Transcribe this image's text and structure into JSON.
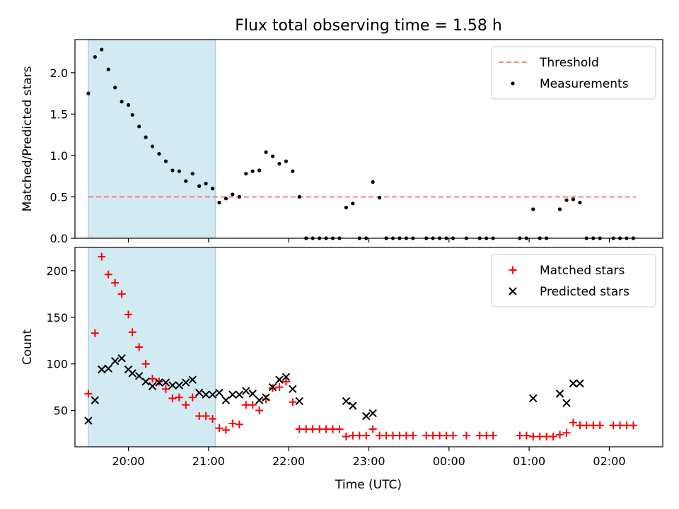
{
  "figure": {
    "title": "Flux total observing time = 1.58 h",
    "xlabel": "Time (UTC)"
  },
  "chart_data": [
    {
      "type": "scatter",
      "title": "Flux total observing time = 1.58 h",
      "ylabel": "Matched/Predicted stars",
      "xlim": [
        "19:20",
        "02:40"
      ],
      "ylim": [
        0,
        2.4
      ],
      "yticks": [
        "0.0",
        "0.5",
        "1.0",
        "1.5",
        "2.0"
      ],
      "shaded_span": [
        "19:30",
        "21:05"
      ],
      "shade_color": "#add8e6",
      "legend_position": "upper right",
      "threshold": {
        "name": "Threshold",
        "value": 0.5,
        "x_range": [
          "19:30",
          "02:20"
        ],
        "color": "#ff7f7f",
        "style": "dashed"
      },
      "series": [
        {
          "name": "Measurements",
          "color": "#000000",
          "marker": "dot",
          "points": [
            [
              "19:30",
              1.75
            ],
            [
              "19:35",
              2.19
            ],
            [
              "19:40",
              2.28
            ],
            [
              "19:45",
              2.04
            ],
            [
              "19:50",
              1.82
            ],
            [
              "19:55",
              1.65
            ],
            [
              "20:00",
              1.61
            ],
            [
              "20:03",
              1.49
            ],
            [
              "20:08",
              1.35
            ],
            [
              "20:13",
              1.22
            ],
            [
              "20:18",
              1.11
            ],
            [
              "20:23",
              1.02
            ],
            [
              "20:28",
              0.93
            ],
            [
              "20:33",
              0.82
            ],
            [
              "20:38",
              0.81
            ],
            [
              "20:43",
              0.69
            ],
            [
              "20:48",
              0.78
            ],
            [
              "20:53",
              0.63
            ],
            [
              "20:58",
              0.66
            ],
            [
              "21:03",
              0.6
            ],
            [
              "21:08",
              0.43
            ],
            [
              "21:13",
              0.48
            ],
            [
              "21:18",
              0.53
            ],
            [
              "21:23",
              0.5
            ],
            [
              "21:28",
              0.78
            ],
            [
              "21:33",
              0.81
            ],
            [
              "21:38",
              0.82
            ],
            [
              "21:43",
              1.04
            ],
            [
              "21:48",
              0.99
            ],
            [
              "21:53",
              0.9
            ],
            [
              "21:58",
              0.93
            ],
            [
              "22:03",
              0.81
            ],
            [
              "22:08",
              0.5
            ],
            [
              "22:13",
              0.0
            ],
            [
              "22:18",
              0.0
            ],
            [
              "22:23",
              0.0
            ],
            [
              "22:28",
              0.0
            ],
            [
              "22:33",
              0.0
            ],
            [
              "22:38",
              0.0
            ],
            [
              "22:43",
              0.37
            ],
            [
              "22:48",
              0.42
            ],
            [
              "22:53",
              0.0
            ],
            [
              "22:58",
              0.0
            ],
            [
              "23:03",
              0.68
            ],
            [
              "23:08",
              0.49
            ],
            [
              "23:13",
              0.0
            ],
            [
              "23:18",
              0.0
            ],
            [
              "23:23",
              0.0
            ],
            [
              "23:28",
              0.0
            ],
            [
              "23:33",
              0.0
            ],
            [
              "23:43",
              0.0
            ],
            [
              "23:48",
              0.0
            ],
            [
              "23:53",
              0.0
            ],
            [
              "23:58",
              0.0
            ],
            [
              "00:03",
              0.0
            ],
            [
              "00:13",
              0.0
            ],
            [
              "00:23",
              0.0
            ],
            [
              "00:28",
              0.0
            ],
            [
              "00:33",
              0.0
            ],
            [
              "00:53",
              0.0
            ],
            [
              "00:58",
              0.0
            ],
            [
              "01:03",
              0.35
            ],
            [
              "01:08",
              0.0
            ],
            [
              "01:13",
              0.0
            ],
            [
              "01:23",
              0.35
            ],
            [
              "01:28",
              0.46
            ],
            [
              "01:33",
              0.47
            ],
            [
              "01:38",
              0.43
            ],
            [
              "01:43",
              0.0
            ],
            [
              "01:48",
              0.0
            ],
            [
              "01:53",
              0.0
            ],
            [
              "02:03",
              0.0
            ],
            [
              "02:08",
              0.0
            ],
            [
              "02:13",
              0.0
            ],
            [
              "02:18",
              0.0
            ]
          ]
        }
      ]
    },
    {
      "type": "scatter",
      "xlabel": "Time (UTC)",
      "ylabel": "Count",
      "xlim": [
        "19:20",
        "02:40"
      ],
      "ylim": [
        11,
        225
      ],
      "yticks": [
        "50",
        "100",
        "150",
        "200"
      ],
      "xticks": [
        "20:00",
        "21:00",
        "22:00",
        "23:00",
        "00:00",
        "01:00",
        "02:00"
      ],
      "shaded_span": [
        "19:30",
        "21:05"
      ],
      "shade_color": "#add8e6",
      "legend_position": "upper right",
      "series": [
        {
          "name": "Matched stars",
          "color": "#ff0000",
          "marker": "plus",
          "points": [
            [
              "19:30",
              68
            ],
            [
              "19:35",
              133
            ],
            [
              "19:40",
              215
            ],
            [
              "19:45",
              196
            ],
            [
              "19:50",
              187
            ],
            [
              "19:55",
              175
            ],
            [
              "20:00",
              153
            ],
            [
              "20:03",
              134
            ],
            [
              "20:08",
              118
            ],
            [
              "20:13",
              100
            ],
            [
              "20:18",
              84
            ],
            [
              "20:23",
              81
            ],
            [
              "20:28",
              73
            ],
            [
              "20:33",
              63
            ],
            [
              "20:38",
              64
            ],
            [
              "20:43",
              56
            ],
            [
              "20:48",
              64
            ],
            [
              "20:53",
              44
            ],
            [
              "20:58",
              44
            ],
            [
              "21:03",
              41
            ],
            [
              "21:08",
              31
            ],
            [
              "21:13",
              29
            ],
            [
              "21:18",
              36
            ],
            [
              "21:23",
              35
            ],
            [
              "21:28",
              56
            ],
            [
              "21:33",
              56
            ],
            [
              "21:38",
              50
            ],
            [
              "21:43",
              62
            ],
            [
              "21:48",
              74
            ],
            [
              "21:53",
              75
            ],
            [
              "21:58",
              81
            ],
            [
              "22:03",
              59
            ],
            [
              "22:08",
              30
            ],
            [
              "22:13",
              30
            ],
            [
              "22:18",
              30
            ],
            [
              "22:23",
              30
            ],
            [
              "22:28",
              30
            ],
            [
              "22:33",
              30
            ],
            [
              "22:38",
              30
            ],
            [
              "22:43",
              22
            ],
            [
              "22:48",
              23
            ],
            [
              "22:53",
              23
            ],
            [
              "22:58",
              23
            ],
            [
              "23:03",
              30
            ],
            [
              "23:08",
              23
            ],
            [
              "23:13",
              23
            ],
            [
              "23:18",
              23
            ],
            [
              "23:23",
              23
            ],
            [
              "23:28",
              23
            ],
            [
              "23:33",
              23
            ],
            [
              "23:43",
              23
            ],
            [
              "23:48",
              23
            ],
            [
              "23:53",
              23
            ],
            [
              "23:58",
              23
            ],
            [
              "00:03",
              23
            ],
            [
              "00:13",
              23
            ],
            [
              "00:23",
              23
            ],
            [
              "00:28",
              23
            ],
            [
              "00:33",
              23
            ],
            [
              "00:53",
              23
            ],
            [
              "00:58",
              23
            ],
            [
              "01:03",
              22
            ],
            [
              "01:08",
              22
            ],
            [
              "01:13",
              22
            ],
            [
              "01:18",
              22
            ],
            [
              "01:23",
              24
            ],
            [
              "01:28",
              26
            ],
            [
              "01:33",
              37
            ],
            [
              "01:38",
              34
            ],
            [
              "01:43",
              34
            ],
            [
              "01:48",
              34
            ],
            [
              "01:53",
              34
            ],
            [
              "02:03",
              34
            ],
            [
              "02:08",
              34
            ],
            [
              "02:13",
              34
            ],
            [
              "02:18",
              34
            ]
          ]
        },
        {
          "name": "Predicted stars",
          "color": "#000000",
          "marker": "cross",
          "points": [
            [
              "19:30",
              39
            ],
            [
              "19:35",
              61
            ],
            [
              "19:40",
              94
            ],
            [
              "19:45",
              95
            ],
            [
              "19:50",
              103
            ],
            [
              "19:55",
              106
            ],
            [
              "20:00",
              94
            ],
            [
              "20:03",
              90
            ],
            [
              "20:08",
              87
            ],
            [
              "20:13",
              81
            ],
            [
              "20:18",
              76
            ],
            [
              "20:23",
              80
            ],
            [
              "20:28",
              80
            ],
            [
              "20:33",
              77
            ],
            [
              "20:38",
              77
            ],
            [
              "20:43",
              80
            ],
            [
              "20:48",
              83
            ],
            [
              "20:53",
              69
            ],
            [
              "20:58",
              67
            ],
            [
              "21:03",
              67
            ],
            [
              "21:08",
              69
            ],
            [
              "21:13",
              61
            ],
            [
              "21:18",
              67
            ],
            [
              "21:23",
              67
            ],
            [
              "21:28",
              71
            ],
            [
              "21:33",
              68
            ],
            [
              "21:38",
              61
            ],
            [
              "21:43",
              64
            ],
            [
              "21:48",
              75
            ],
            [
              "21:53",
              83
            ],
            [
              "21:58",
              86
            ],
            [
              "22:03",
              73
            ],
            [
              "22:08",
              60
            ],
            [
              "22:43",
              60
            ],
            [
              "22:48",
              55
            ],
            [
              "22:58",
              44
            ],
            [
              "23:03",
              47
            ],
            [
              "01:03",
              63
            ],
            [
              "01:23",
              68
            ],
            [
              "01:28",
              58
            ],
            [
              "01:33",
              79
            ],
            [
              "01:38",
              79
            ]
          ]
        }
      ]
    }
  ]
}
